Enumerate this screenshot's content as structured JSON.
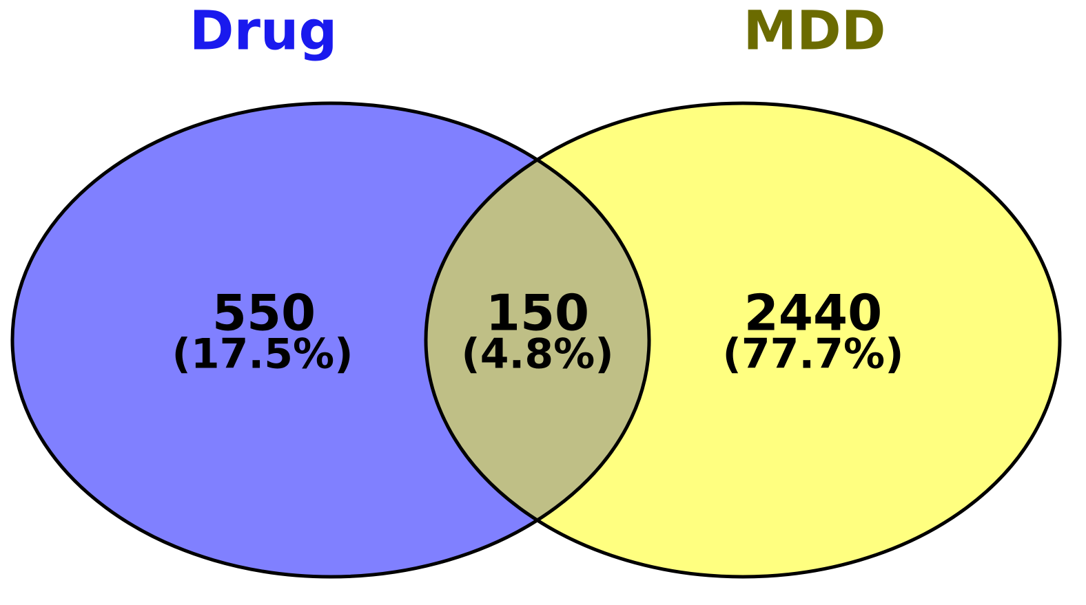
{
  "chart_data": {
    "type": "venn",
    "sets": [
      {
        "name": "Drug",
        "color": "#8080ff",
        "title_color": "#1a1aee"
      },
      {
        "name": "MDD",
        "color": "#ffff80",
        "title_color": "#6b6b00"
      }
    ],
    "overlap_color": "#bfbf86",
    "values": [
      550,
      150,
      2440
    ],
    "percents": [
      17.5,
      4.8,
      77.7
    ],
    "percent_labels": [
      "(17.5%)",
      "(4.8%)",
      "(77.7%)"
    ]
  }
}
